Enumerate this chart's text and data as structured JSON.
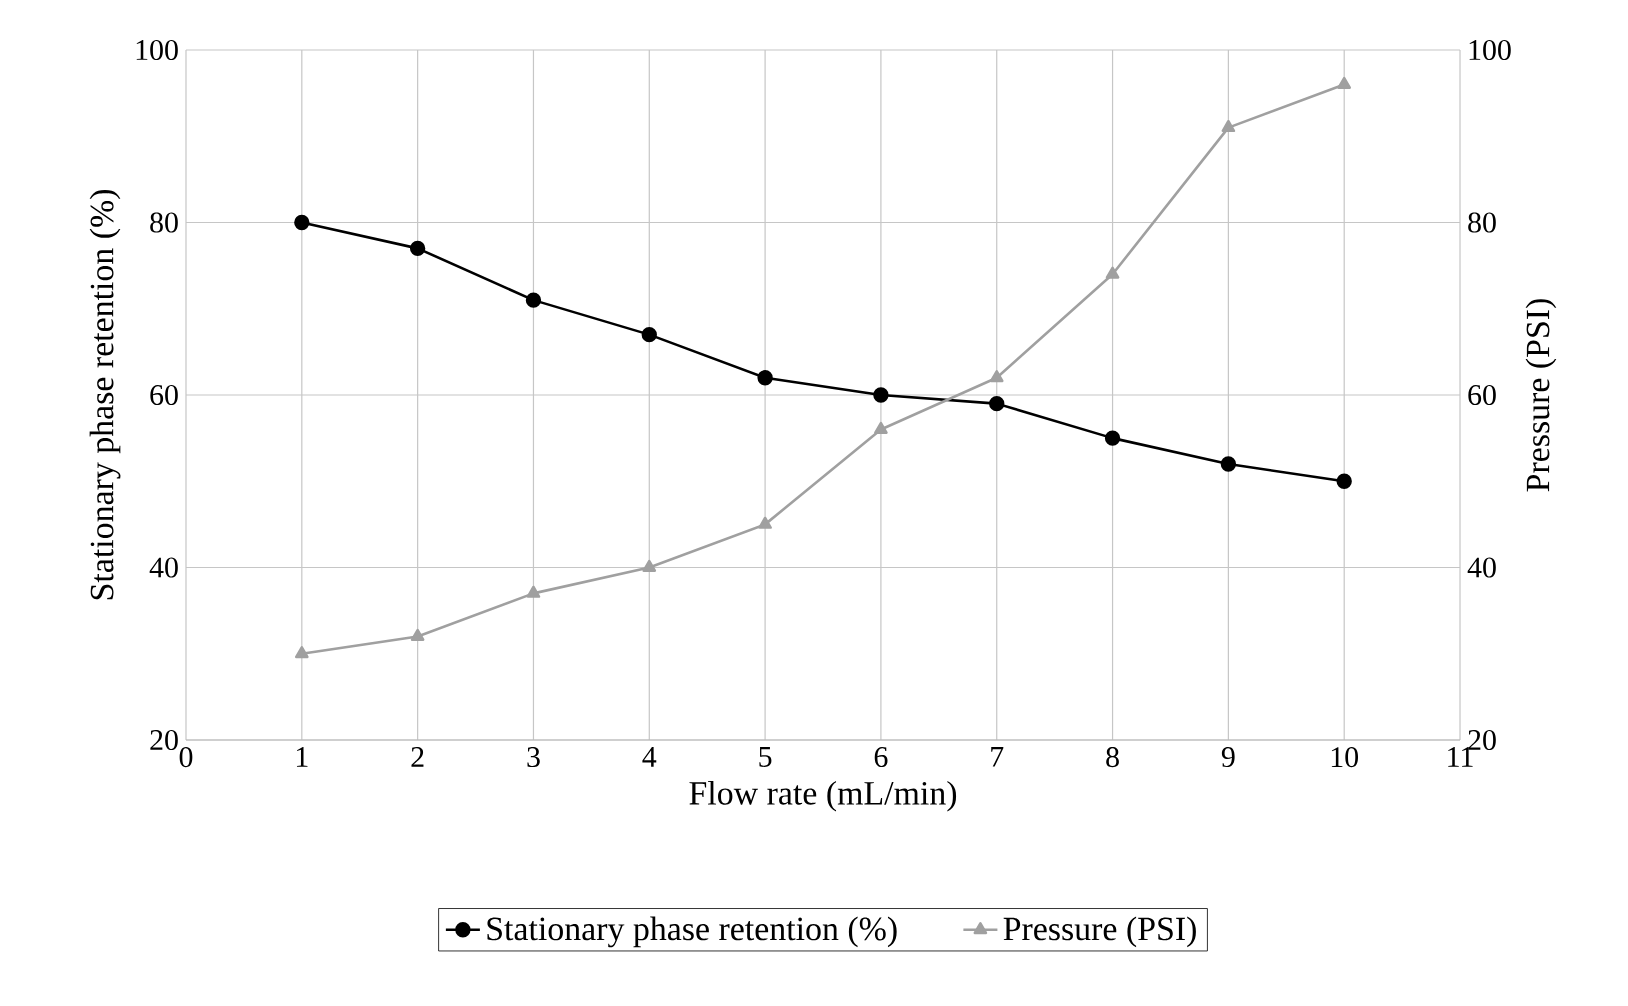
{
  "chart_data": {
    "type": "line",
    "xlabel": "Flow rate (mL/min)",
    "ylabel": "Stationary phase retention (%)",
    "y2label": "Pressure (PSI)",
    "x": [
      1,
      2,
      3,
      4,
      5,
      6,
      7,
      8,
      9,
      10
    ],
    "series": [
      {
        "name": "Stationary phase retention (%)",
        "color": "#000000",
        "marker": "circle",
        "values": [
          80,
          77,
          71,
          67,
          62,
          60,
          59,
          55,
          52,
          50
        ]
      },
      {
        "name": "Pressure (PSI)",
        "color": "#a0a0a0",
        "marker": "triangle",
        "axis": "y2",
        "values": [
          30,
          32,
          37,
          40,
          45,
          56,
          62,
          74,
          91,
          96
        ]
      }
    ],
    "xlim": [
      0,
      11
    ],
    "xticks": [
      0,
      1,
      2,
      3,
      4,
      5,
      6,
      7,
      8,
      9,
      10,
      11
    ],
    "ylim": [
      20,
      100
    ],
    "yticks": [
      20,
      40,
      60,
      80,
      100
    ],
    "y2lim": [
      20,
      100
    ],
    "y2ticks": [
      20,
      40,
      60,
      80,
      100
    ],
    "grid": true,
    "legend": "bottom",
    "line_style": "solid"
  }
}
